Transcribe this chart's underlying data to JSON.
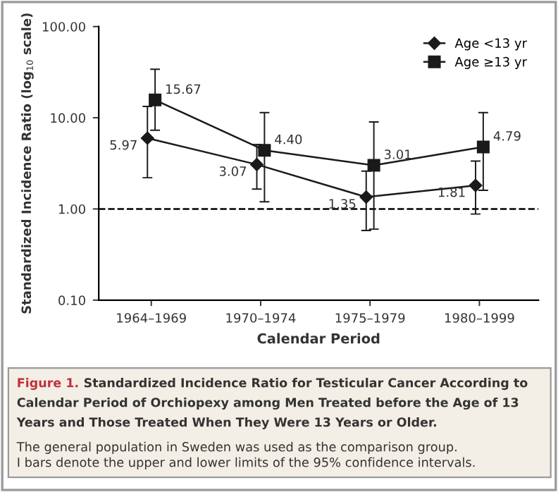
{
  "chart_data": {
    "type": "line",
    "title": "Standardized Incidence Ratio for Testicular Cancer According to\nCalendar Period of Orchiopexy among Men Treated before the Age of 13\nYears and Those Treated When They Were 13 Years or Older.",
    "annotations": [
      "Figure 1.",
      "The general population in Sweden was used as the comparison group.\nI bars denote the upper and lower limits of the 95% confidence intervals."
    ],
    "xlabel": "Calendar Period",
    "ylabel": "Standardized Incidence Ratio (log$_{10}$ scale)",
    "categories": [
      "1964–1969",
      "1970–1974",
      "1975–1979",
      "1980–1999"
    ],
    "series": [
      {
        "name": "Age <13 yr",
        "color": "#1a1a1a",
        "marker": "diamond",
        "values": [
          5.97,
          3.07,
          1.35,
          1.81
        ],
        "value_labels": [
          "5.97",
          "3.07",
          "1.35",
          "1.81"
        ],
        "errors": [
          [
            2.2,
            13.3
          ],
          [
            1.65,
            5.1
          ],
          [
            0.58,
            2.6
          ],
          [
            0.88,
            3.35
          ]
        ]
      },
      {
        "name": "Age ≥13 yr",
        "color": "#1a1a1a",
        "marker": "square",
        "values": [
          15.67,
          4.4,
          3.01,
          4.79
        ],
        "value_labels": [
          "15.67",
          "4.40",
          "3.01",
          "4.79"
        ],
        "errors": [
          [
            7.3,
            34
          ],
          [
            1.2,
            11.4
          ],
          [
            0.6,
            9.0
          ],
          [
            1.6,
            11.4
          ]
        ]
      }
    ],
    "log": true,
    "ylim": [
      0.1,
      100
    ],
    "yticks": [
      {
        "value": 0.1,
        "label": "0.10"
      },
      {
        "value": 1,
        "label": "1.00"
      },
      {
        "value": 10,
        "label": "10.00"
      },
      {
        "value": 100,
        "label": "100.00"
      }
    ],
    "ref_lines": [
      {
        "axis": "y",
        "value": 1,
        "color": "#000000",
        "line_style": "dashed"
      }
    ],
    "legend": "top right",
    "grid": false
  }
}
